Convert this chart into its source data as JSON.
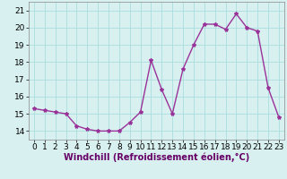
{
  "x": [
    0,
    1,
    2,
    3,
    4,
    5,
    6,
    7,
    8,
    9,
    10,
    11,
    12,
    13,
    14,
    15,
    16,
    17,
    18,
    19,
    20,
    21,
    22,
    23
  ],
  "y": [
    15.3,
    15.2,
    15.1,
    15.0,
    14.3,
    14.1,
    14.0,
    14.0,
    14.0,
    14.5,
    15.1,
    18.1,
    16.4,
    15.0,
    17.6,
    19.0,
    20.2,
    20.2,
    19.9,
    20.8,
    20.0,
    19.8,
    16.5,
    14.8
  ],
  "line_color": "#993399",
  "marker": "*",
  "marker_size": 3,
  "bg_color": "#d9f0f0",
  "grid_color": "#aadddd",
  "xlabel": "Windchill (Refroidissement éolien,°C)",
  "xlim": [
    -0.5,
    23.5
  ],
  "ylim": [
    13.5,
    21.5
  ],
  "yticks": [
    14,
    15,
    16,
    17,
    18,
    19,
    20,
    21
  ],
  "xticks": [
    0,
    1,
    2,
    3,
    4,
    5,
    6,
    7,
    8,
    9,
    10,
    11,
    12,
    13,
    14,
    15,
    16,
    17,
    18,
    19,
    20,
    21,
    22,
    23
  ],
  "xlabel_fontsize": 7,
  "tick_fontsize": 6.5,
  "line_width": 1.0
}
